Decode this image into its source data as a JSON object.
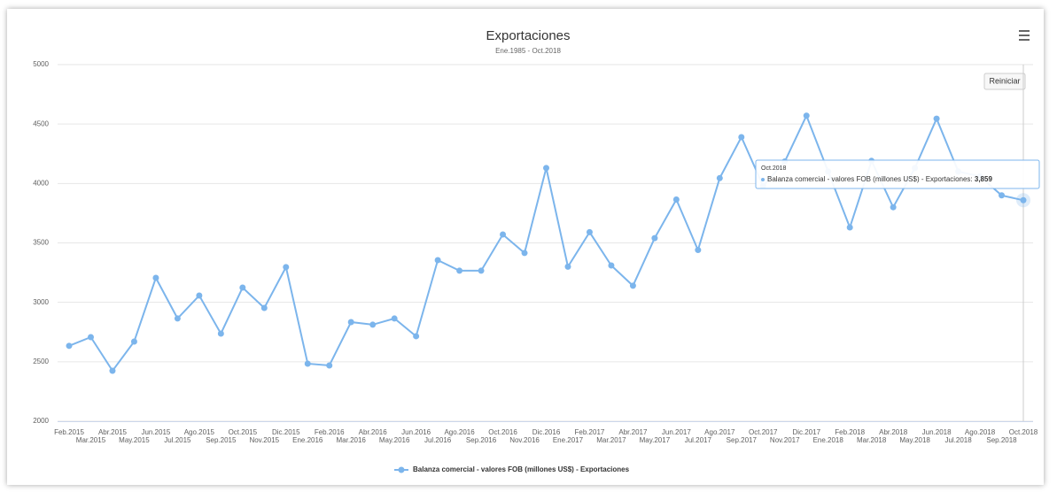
{
  "chart_data": {
    "type": "line",
    "title": "Exportaciones",
    "subtitle": "Ene.1985 - Oct.2018",
    "categories": [
      "Feb.2015",
      "Mar.2015",
      "Abr.2015",
      "May.2015",
      "Jun.2015",
      "Jul.2015",
      "Ago.2015",
      "Sep.2015",
      "Oct.2015",
      "Nov.2015",
      "Dic.2015",
      "Ene.2016",
      "Feb.2016",
      "Mar.2016",
      "Abr.2016",
      "May.2016",
      "Jun.2016",
      "Jul.2016",
      "Ago.2016",
      "Sep.2016",
      "Oct.2016",
      "Nov.2016",
      "Dic.2016",
      "Ene.2017",
      "Feb.2017",
      "Mar.2017",
      "Abr.2017",
      "May.2017",
      "Jun.2017",
      "Jul.2017",
      "Ago.2017",
      "Sep.2017",
      "Oct.2017",
      "Nov.2017",
      "Dic.2017",
      "Ene.2018",
      "Feb.2018",
      "Mar.2018",
      "Abr.2018",
      "May.2018",
      "Jun.2018",
      "Jul.2018",
      "Ago.2018",
      "Sep.2018",
      "Oct.2018"
    ],
    "series": [
      {
        "name": "Balanza comercial - valores FOB (millones US$) - Exportaciones",
        "color": "#7cb5ec",
        "values": [
          2634,
          2707,
          2424,
          2670,
          3206,
          2864,
          3057,
          2737,
          3124,
          2953,
          3296,
          2484,
          2469,
          2834,
          2812,
          2864,
          2715,
          3355,
          3266,
          3266,
          3571,
          3415,
          4130,
          3300,
          3590,
          3310,
          3140,
          3540,
          3865,
          3440,
          4045,
          4390,
          3980,
          4185,
          4570,
          4100,
          3630,
          4190,
          3800,
          4130,
          4545,
          4100,
          4060,
          3900,
          3859
        ]
      }
    ],
    "ylim": [
      2000,
      5000
    ],
    "yticks": [
      2000,
      2500,
      3000,
      3500,
      4000,
      4500,
      5000
    ],
    "grid": true,
    "legend": "bottom",
    "tooltip": {
      "value_label": "3,859"
    },
    "reset_button": "Reiniciar"
  }
}
